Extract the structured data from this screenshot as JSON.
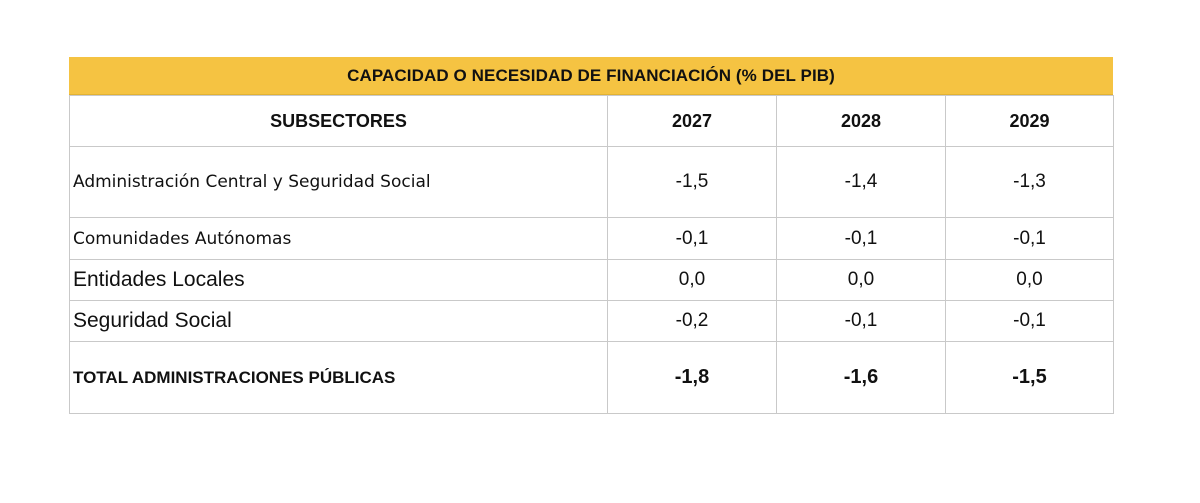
{
  "title": "CAPACIDAD O NECESIDAD DE FINANCIACIÓN (% DEL PIB)",
  "header": {
    "subsectores": "SUBSECTORES",
    "years": [
      "2027",
      "2028",
      "2029"
    ]
  },
  "rows": [
    {
      "label": "Administración Central y Seguridad Social",
      "values": [
        "-1,5",
        "-1,4",
        "-1,3"
      ]
    },
    {
      "label": "Comunidades Autónomas",
      "values": [
        "-0,1",
        "-0,1",
        "-0,1"
      ]
    },
    {
      "label": "Entidades Locales",
      "values": [
        "0,0",
        "0,0",
        "0,0"
      ]
    },
    {
      "label": "Seguridad Social",
      "values": [
        "-0,2",
        "-0,1",
        "-0,1"
      ]
    }
  ],
  "total": {
    "label": "TOTAL ADMINISTRACIONES PÚBLICAS",
    "values": [
      "-1,8",
      "-1,6",
      "-1,5"
    ]
  },
  "colors": {
    "title_bg": "#f5c342",
    "grid": "#c9c9c9",
    "text": "#111111"
  }
}
